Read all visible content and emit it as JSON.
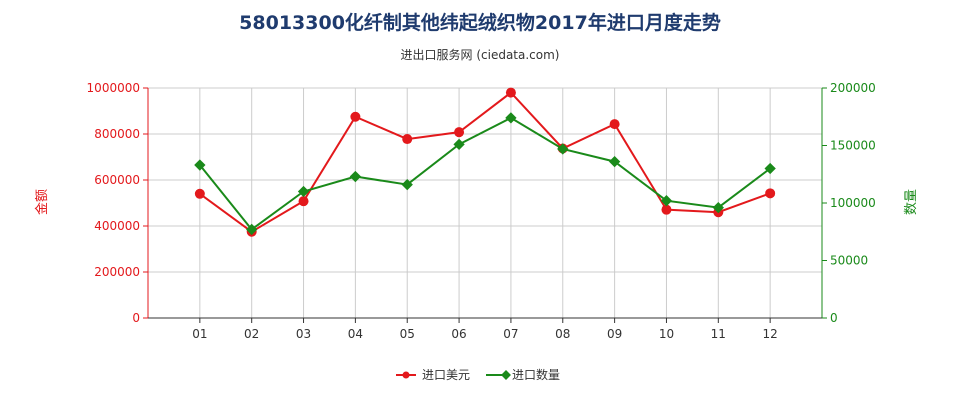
{
  "title": "58013300化纤制其他纬起绒织物2017年进口月度走势",
  "subtitle": "进出口服务网 (ciedata.com)",
  "colors": {
    "amount": "#e3191c",
    "quantity": "#1a8a1a",
    "grid": "#cccccc",
    "axis": "#333333"
  },
  "chart_data": {
    "type": "line",
    "categories": [
      "01",
      "02",
      "03",
      "04",
      "05",
      "06",
      "07",
      "08",
      "09",
      "10",
      "11",
      "12"
    ],
    "series": [
      {
        "name": "进口美元",
        "axis": "left",
        "values": [
          540000,
          375000,
          508000,
          875000,
          778000,
          808000,
          980000,
          737000,
          843000,
          471000,
          460000,
          542000
        ]
      },
      {
        "name": "进口数量",
        "axis": "right",
        "values": [
          133000,
          77000,
          110000,
          123000,
          116000,
          151000,
          174000,
          147000,
          136000,
          102000,
          96000,
          130000
        ]
      }
    ],
    "ylabel_left": "金额",
    "ylabel_right": "数量",
    "ylim_left": [
      0,
      1000000
    ],
    "ylim_right": [
      0,
      200000
    ],
    "yticks_left": [
      "0",
      "200000",
      "400000",
      "600000",
      "800000",
      "1000000"
    ],
    "yticks_right": [
      "0",
      "50000",
      "100000",
      "150000",
      "200000"
    ],
    "grid": true,
    "legend_position": "bottom-center"
  }
}
